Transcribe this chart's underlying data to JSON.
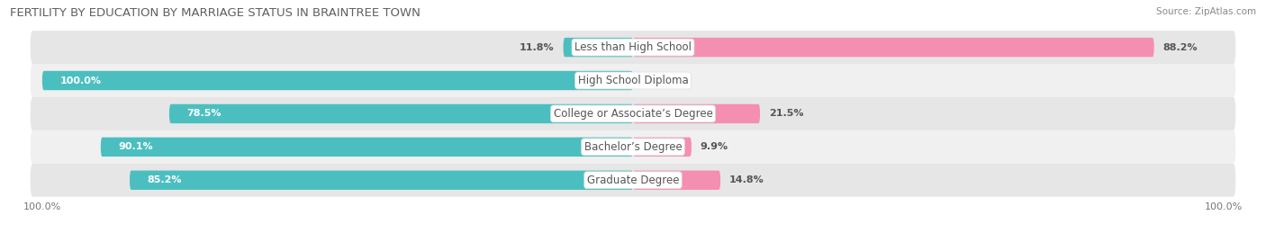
{
  "title": "FERTILITY BY EDUCATION BY MARRIAGE STATUS IN BRAINTREE TOWN",
  "source": "Source: ZipAtlas.com",
  "categories": [
    "Less than High School",
    "High School Diploma",
    "College or Associate’s Degree",
    "Bachelor’s Degree",
    "Graduate Degree"
  ],
  "married": [
    11.8,
    100.0,
    78.5,
    90.1,
    85.2
  ],
  "unmarried": [
    88.2,
    0.0,
    21.5,
    9.9,
    14.8
  ],
  "married_color": "#4BBFC0",
  "unmarried_color": "#F48FB1",
  "row_bg_even": "#F0F0F0",
  "row_bg_odd": "#E6E6E6",
  "title_color": "#606060",
  "text_color": "#555555",
  "source_color": "#888888",
  "axis_label_color": "#777777",
  "figsize": [
    14.06,
    2.69
  ],
  "dpi": 100,
  "bar_height": 0.58
}
